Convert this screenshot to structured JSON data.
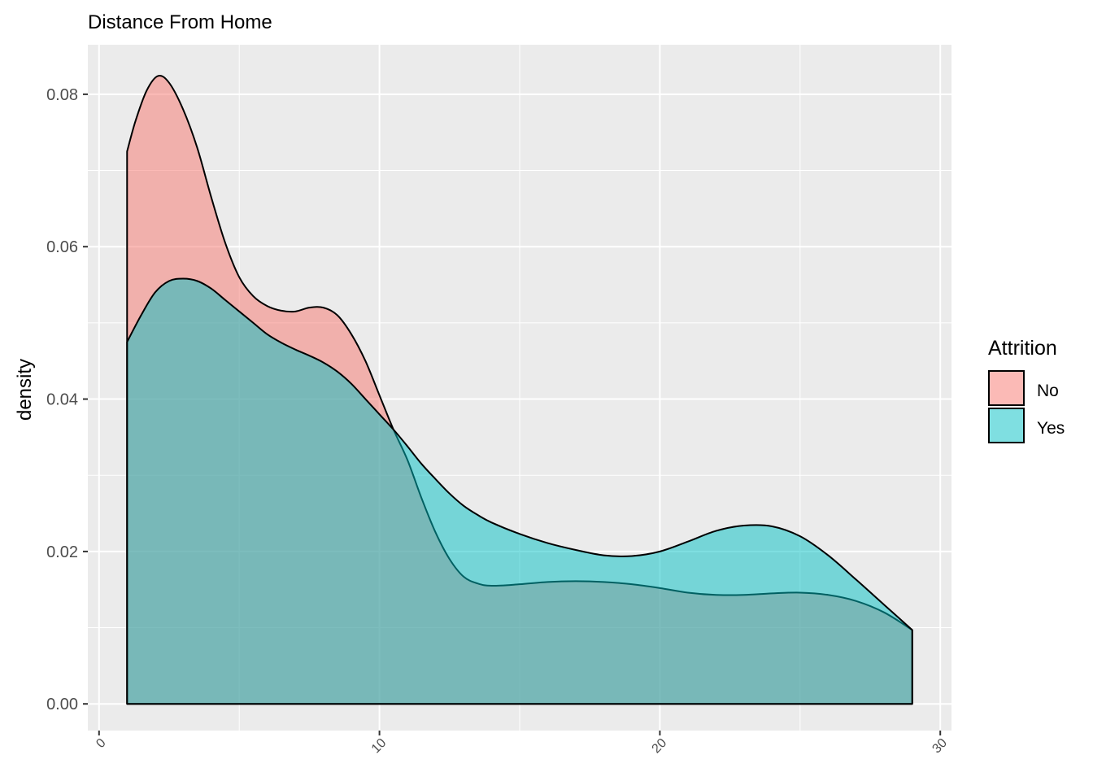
{
  "chart_data": {
    "type": "area",
    "title": "Distance From Home",
    "xlabel": "",
    "ylabel": "density",
    "xlim": [
      -0.4,
      30.4
    ],
    "ylim": [
      -0.0035,
      0.0865
    ],
    "x_ticks": [
      0,
      10,
      20,
      30
    ],
    "x_tick_labels": [
      "0",
      "10",
      "20",
      "30"
    ],
    "y_ticks": [
      0.0,
      0.02,
      0.04,
      0.06,
      0.08
    ],
    "y_tick_labels": [
      "0.00",
      "0.02",
      "0.04",
      "0.06",
      "0.08"
    ],
    "grid": true,
    "legend": {
      "title": "Attrition",
      "position": "right",
      "entries": [
        "No",
        "Yes"
      ]
    },
    "series": [
      {
        "name": "No",
        "color": "#F8766D",
        "points": [
          [
            1.0,
            0.0725
          ],
          [
            1.3,
            0.0765
          ],
          [
            1.7,
            0.0805
          ],
          [
            2.1,
            0.0824
          ],
          [
            2.5,
            0.0815
          ],
          [
            3.0,
            0.078
          ],
          [
            3.5,
            0.073
          ],
          [
            4.0,
            0.0665
          ],
          [
            4.5,
            0.0605
          ],
          [
            5.0,
            0.056
          ],
          [
            5.5,
            0.0535
          ],
          [
            6.0,
            0.0522
          ],
          [
            6.5,
            0.0516
          ],
          [
            7.0,
            0.0515
          ],
          [
            7.5,
            0.052
          ],
          [
            8.0,
            0.052
          ],
          [
            8.5,
            0.051
          ],
          [
            9.0,
            0.0485
          ],
          [
            9.5,
            0.045
          ],
          [
            10.0,
            0.0405
          ],
          [
            10.5,
            0.036
          ],
          [
            11.0,
            0.032
          ],
          [
            11.5,
            0.027
          ],
          [
            12.0,
            0.0225
          ],
          [
            12.5,
            0.019
          ],
          [
            13.0,
            0.0167
          ],
          [
            13.5,
            0.0158
          ],
          [
            14.0,
            0.0155
          ],
          [
            15.0,
            0.0157
          ],
          [
            16.0,
            0.016
          ],
          [
            17.0,
            0.0161
          ],
          [
            18.0,
            0.016
          ],
          [
            19.0,
            0.0157
          ],
          [
            20.0,
            0.0152
          ],
          [
            21.0,
            0.0146
          ],
          [
            22.0,
            0.0143
          ],
          [
            23.0,
            0.0143
          ],
          [
            24.0,
            0.0145
          ],
          [
            25.0,
            0.0146
          ],
          [
            26.0,
            0.0143
          ],
          [
            27.0,
            0.0135
          ],
          [
            28.0,
            0.012
          ],
          [
            29.0,
            0.0097
          ]
        ]
      },
      {
        "name": "Yes",
        "color": "#00BFC4",
        "points": [
          [
            1.0,
            0.0475
          ],
          [
            1.5,
            0.051
          ],
          [
            2.0,
            0.054
          ],
          [
            2.5,
            0.0555
          ],
          [
            3.0,
            0.0558
          ],
          [
            3.5,
            0.0555
          ],
          [
            4.0,
            0.0545
          ],
          [
            4.5,
            0.053
          ],
          [
            5.0,
            0.0515
          ],
          [
            5.5,
            0.05
          ],
          [
            6.0,
            0.0485
          ],
          [
            6.5,
            0.0474
          ],
          [
            7.0,
            0.0465
          ],
          [
            7.5,
            0.0457
          ],
          [
            8.0,
            0.0448
          ],
          [
            8.5,
            0.0436
          ],
          [
            9.0,
            0.042
          ],
          [
            9.5,
            0.04
          ],
          [
            10.0,
            0.038
          ],
          [
            10.5,
            0.036
          ],
          [
            11.0,
            0.0338
          ],
          [
            11.5,
            0.0315
          ],
          [
            12.0,
            0.0295
          ],
          [
            12.5,
            0.0276
          ],
          [
            13.0,
            0.026
          ],
          [
            13.5,
            0.0248
          ],
          [
            14.0,
            0.0238
          ],
          [
            15.0,
            0.0223
          ],
          [
            16.0,
            0.0211
          ],
          [
            17.0,
            0.0202
          ],
          [
            18.0,
            0.0195
          ],
          [
            19.0,
            0.0194
          ],
          [
            20.0,
            0.02
          ],
          [
            21.0,
            0.0213
          ],
          [
            22.0,
            0.0227
          ],
          [
            23.0,
            0.0234
          ],
          [
            24.0,
            0.0233
          ],
          [
            25.0,
            0.022
          ],
          [
            26.0,
            0.0195
          ],
          [
            27.0,
            0.0163
          ],
          [
            28.0,
            0.013
          ],
          [
            29.0,
            0.0097
          ]
        ]
      }
    ]
  }
}
